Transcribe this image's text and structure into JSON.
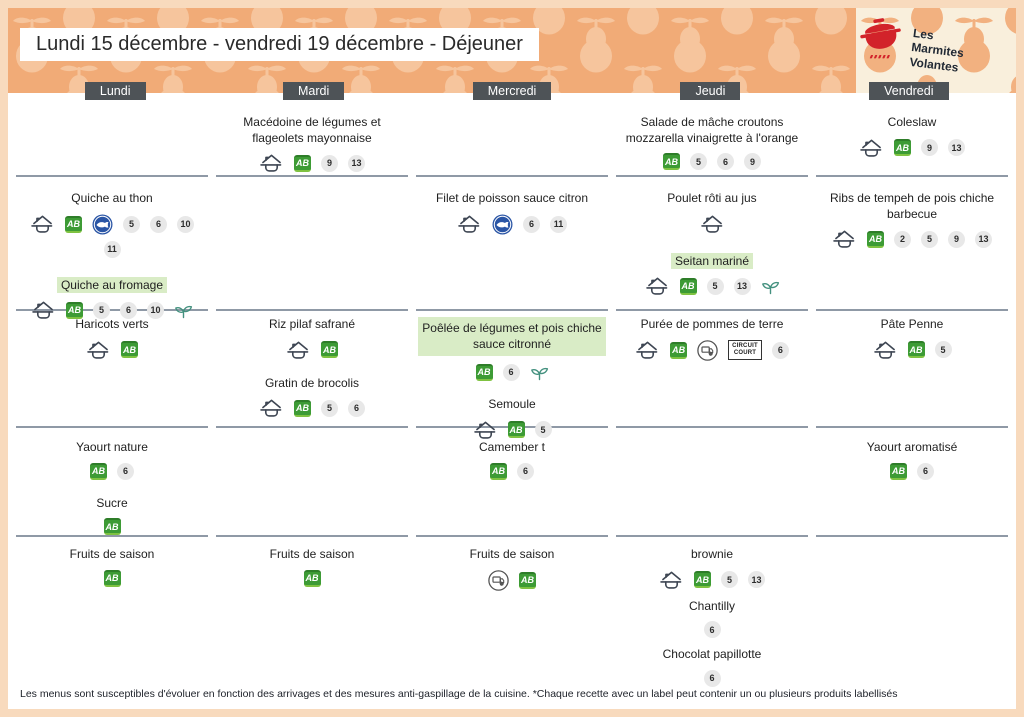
{
  "header": {
    "title": "Lundi 15 décembre - vendredi 19 décembre - Déjeuner",
    "logo": {
      "lines": [
        "Les",
        "Marmites",
        "Volantes"
      ]
    }
  },
  "badge_labels": {
    "ab": "AB",
    "circuit_court": [
      "CIRCUIT",
      "COURT"
    ]
  },
  "colors": {
    "banner_orange": "#f1ab77",
    "pear_light": "#f6c59d",
    "cream": "#f9efdc",
    "pear_on_cream": "#f2b180",
    "frame_peach": "#f8dabd",
    "day_chip": "#4e5357",
    "divider": "#8f99a6",
    "highlight_green": "#d9ecc6",
    "ab_green": "#3d9b35",
    "msc_blue": "#2a55a5",
    "leaf_teal": "#44917f",
    "pot_red": "#d2232a",
    "allergen_gray": "#e8e8e8"
  },
  "days": [
    {
      "name": "Lundi",
      "rows": [
        [],
        [
          {
            "label": "Quiche au thon",
            "badges": [
              "fait-maison",
              "ab",
              "msc",
              "5",
              "6",
              "10",
              "11"
            ]
          },
          {
            "label": "Quiche au fromage",
            "highlight": "text",
            "badges": [
              "fait-maison",
              "ab",
              "5",
              "6",
              "10",
              "leaf"
            ]
          }
        ],
        [
          {
            "label": "Haricots verts",
            "badges": [
              "fait-maison",
              "ab"
            ]
          }
        ],
        [
          {
            "label": "Yaourt nature",
            "badges": [
              "ab",
              "6"
            ]
          },
          {
            "label": "Sucre",
            "badges": [
              "ab"
            ]
          }
        ],
        [
          {
            "label": "Fruits de saison",
            "badges": [
              "ab"
            ]
          }
        ]
      ]
    },
    {
      "name": "Mardi",
      "rows": [
        [
          {
            "label": "Macédoine de légumes et flageolets mayonnaise",
            "badges": [
              "fait-maison",
              "ab",
              "9",
              "13"
            ]
          }
        ],
        [],
        [
          {
            "label": "Riz pilaf safrané",
            "badges": [
              "fait-maison",
              "ab"
            ]
          },
          {
            "label": "Gratin de brocolis",
            "badges": [
              "fait-maison",
              "ab",
              "5",
              "6"
            ]
          }
        ],
        [],
        [
          {
            "label": "Fruits de saison",
            "badges": [
              "ab"
            ]
          }
        ]
      ]
    },
    {
      "name": "Mercredi",
      "rows": [
        [],
        [
          {
            "label": "Filet de poisson sauce citron",
            "badges": [
              "fait-maison",
              "msc",
              "6",
              "11"
            ]
          }
        ],
        [
          {
            "label": "Poêlée de légumes et pois chiche sauce citronné",
            "highlight": "block",
            "badges": [
              "ab",
              "6",
              "leaf"
            ]
          },
          {
            "label": "Semoule",
            "badges": [
              "fait-maison",
              "ab",
              "5"
            ]
          }
        ],
        [
          {
            "label": "Camember t",
            "badges": [
              "ab",
              "6"
            ]
          }
        ],
        [
          {
            "label": "Fruits de saison",
            "badges": [
              "local",
              "ab"
            ]
          }
        ]
      ]
    },
    {
      "name": "Jeudi",
      "rows": [
        [
          {
            "label": "Salade de mâche croutons mozzarella vinaigrette à l'orange",
            "badges": [
              "ab",
              "5",
              "6",
              "9"
            ]
          }
        ],
        [
          {
            "label": "Poulet rôti au jus",
            "badges": [
              "fait-maison"
            ]
          },
          {
            "label": "Seitan mariné",
            "highlight": "text",
            "badges": [
              "fait-maison",
              "ab",
              "5",
              "13",
              "leaf"
            ]
          }
        ],
        [
          {
            "label": "Purée de pommes de terre",
            "badges": [
              "fait-maison",
              "ab",
              "local",
              "circuit-court",
              "6"
            ]
          }
        ],
        [],
        [
          {
            "label": "brownie",
            "badges": [
              "fait-maison",
              "ab",
              "5",
              "13"
            ]
          },
          {
            "label": "Chantilly",
            "badges": [
              "6"
            ]
          },
          {
            "label": "Chocolat papillotte",
            "badges": [
              "6"
            ]
          }
        ]
      ]
    },
    {
      "name": "Vendredi",
      "rows": [
        [
          {
            "label": "Coleslaw",
            "badges": [
              "fait-maison",
              "ab",
              "9",
              "13"
            ]
          }
        ],
        [
          {
            "label": "Ribs de tempeh de pois chiche barbecue",
            "badges": [
              "fait-maison",
              "ab",
              "2",
              "5",
              "9",
              "13"
            ]
          }
        ],
        [
          {
            "label": "Pâte Penne",
            "badges": [
              "fait-maison",
              "ab",
              "5"
            ]
          }
        ],
        [
          {
            "label": "Yaourt aromatisé",
            "badges": [
              "ab",
              "6"
            ]
          }
        ],
        []
      ]
    }
  ],
  "footer": {
    "note": "Les menus sont susceptibles d'évoluer en fonction des arrivages et des mesures anti-gaspillage de la cuisine. *Chaque recette avec un label peut contenir un ou plusieurs produits labellisés"
  }
}
